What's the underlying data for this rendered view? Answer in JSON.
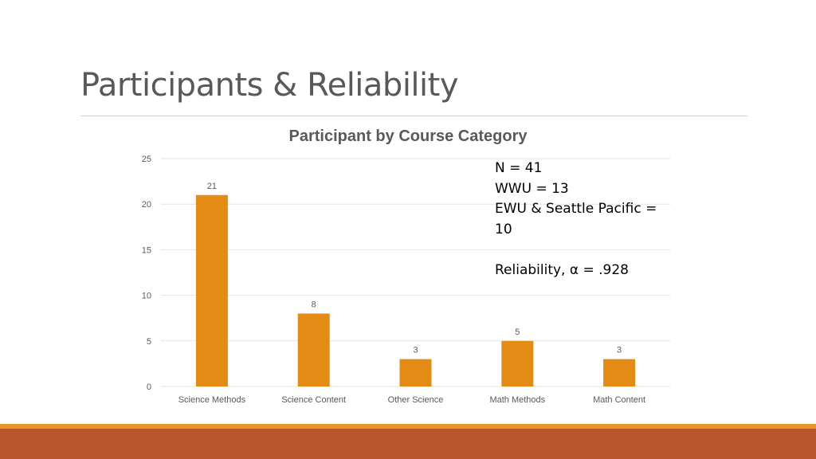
{
  "slide": {
    "title": "Participants & Reliability"
  },
  "notes": {
    "line1": "N = 41",
    "line2": "WWU = 13",
    "line3": "EWU & Seattle Pacific = 10",
    "line4": "Reliability, α = .928"
  },
  "colors": {
    "bar": "#e38b15",
    "accent_bar_light": "#e8942c",
    "accent_bar_dark": "#b9552b"
  },
  "chart_data": {
    "type": "bar",
    "title": "Participant by Course Category",
    "categories": [
      "Science Methods",
      "Science Content",
      "Other Science",
      "Math Methods",
      "Math Content"
    ],
    "values": [
      21,
      8,
      3,
      5,
      3
    ],
    "data_labels": [
      "21",
      "8",
      "3",
      "5",
      "3"
    ],
    "y_ticks": [
      "0",
      "5",
      "10",
      "15",
      "20",
      "25"
    ],
    "ylim": [
      0,
      25
    ],
    "grid": true,
    "legend": "none"
  }
}
